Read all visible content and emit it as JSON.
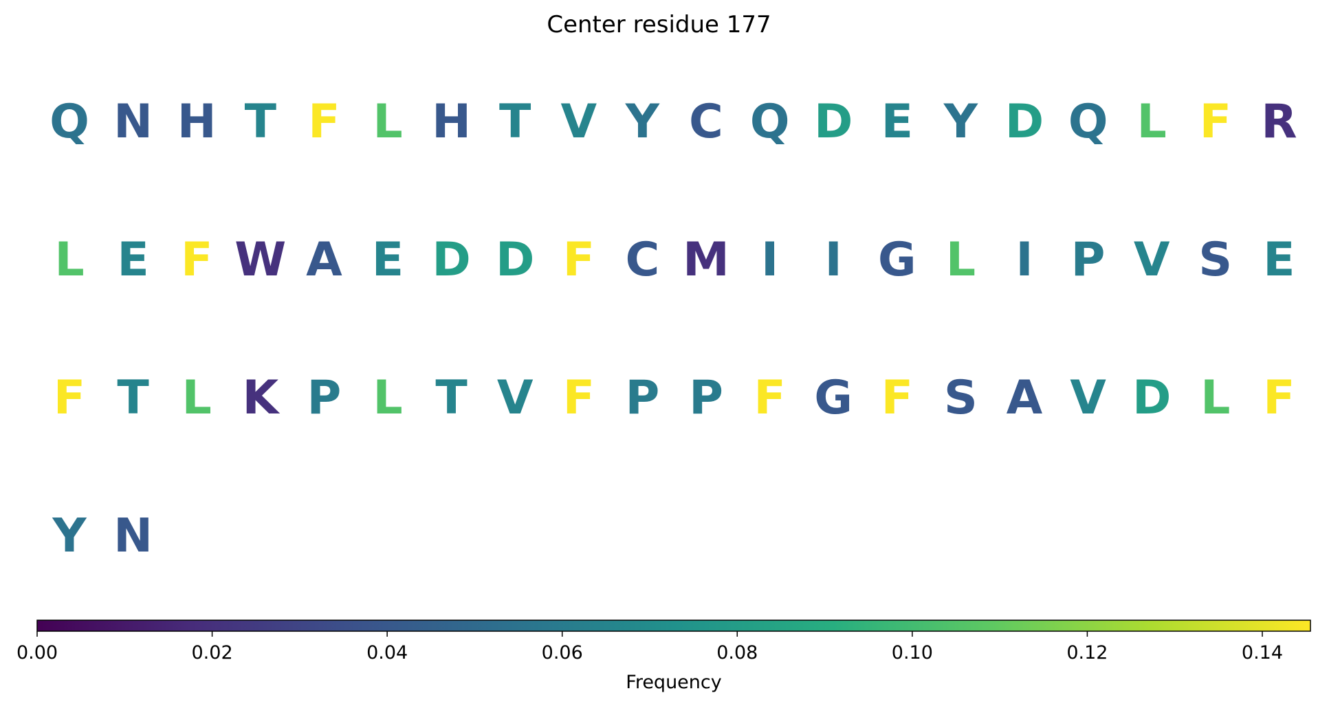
{
  "chart_data": {
    "type": "table",
    "title": "Center residue 177",
    "cells": [
      {
        "residue": "Q",
        "frequency": 0.055
      },
      {
        "residue": "N",
        "frequency": 0.04
      },
      {
        "residue": "H",
        "frequency": 0.04
      },
      {
        "residue": "T",
        "frequency": 0.065
      },
      {
        "residue": "F",
        "frequency": 0.145
      },
      {
        "residue": "L",
        "frequency": 0.105
      },
      {
        "residue": "H",
        "frequency": 0.04
      },
      {
        "residue": "T",
        "frequency": 0.065
      },
      {
        "residue": "V",
        "frequency": 0.065
      },
      {
        "residue": "Y",
        "frequency": 0.055
      },
      {
        "residue": "C",
        "frequency": 0.04
      },
      {
        "residue": "Q",
        "frequency": 0.055
      },
      {
        "residue": "D",
        "frequency": 0.08
      },
      {
        "residue": "E",
        "frequency": 0.065
      },
      {
        "residue": "Y",
        "frequency": 0.055
      },
      {
        "residue": "D",
        "frequency": 0.08
      },
      {
        "residue": "Q",
        "frequency": 0.055
      },
      {
        "residue": "L",
        "frequency": 0.105
      },
      {
        "residue": "F",
        "frequency": 0.145
      },
      {
        "residue": "R",
        "frequency": 0.02
      },
      {
        "residue": "L",
        "frequency": 0.105
      },
      {
        "residue": "E",
        "frequency": 0.065
      },
      {
        "residue": "F",
        "frequency": 0.145
      },
      {
        "residue": "W",
        "frequency": 0.02
      },
      {
        "residue": "A",
        "frequency": 0.04
      },
      {
        "residue": "E",
        "frequency": 0.065
      },
      {
        "residue": "D",
        "frequency": 0.08
      },
      {
        "residue": "D",
        "frequency": 0.08
      },
      {
        "residue": "F",
        "frequency": 0.145
      },
      {
        "residue": "C",
        "frequency": 0.04
      },
      {
        "residue": "M",
        "frequency": 0.02
      },
      {
        "residue": "I",
        "frequency": 0.055
      },
      {
        "residue": "I",
        "frequency": 0.055
      },
      {
        "residue": "G",
        "frequency": 0.04
      },
      {
        "residue": "L",
        "frequency": 0.105
      },
      {
        "residue": "I",
        "frequency": 0.055
      },
      {
        "residue": "P",
        "frequency": 0.06
      },
      {
        "residue": "V",
        "frequency": 0.065
      },
      {
        "residue": "S",
        "frequency": 0.04
      },
      {
        "residue": "E",
        "frequency": 0.065
      },
      {
        "residue": "F",
        "frequency": 0.145
      },
      {
        "residue": "T",
        "frequency": 0.065
      },
      {
        "residue": "L",
        "frequency": 0.105
      },
      {
        "residue": "K",
        "frequency": 0.02
      },
      {
        "residue": "P",
        "frequency": 0.06
      },
      {
        "residue": "L",
        "frequency": 0.105
      },
      {
        "residue": "T",
        "frequency": 0.065
      },
      {
        "residue": "V",
        "frequency": 0.065
      },
      {
        "residue": "F",
        "frequency": 0.145
      },
      {
        "residue": "P",
        "frequency": 0.06
      },
      {
        "residue": "P",
        "frequency": 0.06
      },
      {
        "residue": "F",
        "frequency": 0.145
      },
      {
        "residue": "G",
        "frequency": 0.04
      },
      {
        "residue": "F",
        "frequency": 0.145
      },
      {
        "residue": "S",
        "frequency": 0.04
      },
      {
        "residue": "A",
        "frequency": 0.04
      },
      {
        "residue": "V",
        "frequency": 0.065
      },
      {
        "residue": "D",
        "frequency": 0.08
      },
      {
        "residue": "L",
        "frequency": 0.105
      },
      {
        "residue": "F",
        "frequency": 0.145
      },
      {
        "residue": "Y",
        "frequency": 0.055
      },
      {
        "residue": "N",
        "frequency": 0.04
      }
    ],
    "columns": 20,
    "colormap": "viridis",
    "colorbar": {
      "label": "Frequency",
      "range": [
        0,
        0.1455
      ],
      "ticks": [
        0.0,
        0.02,
        0.04,
        0.06,
        0.08,
        0.1,
        0.12,
        0.14
      ],
      "tick_labels": [
        "0.00",
        "0.02",
        "0.04",
        "0.06",
        "0.08",
        "0.10",
        "0.12",
        "0.14"
      ]
    }
  }
}
